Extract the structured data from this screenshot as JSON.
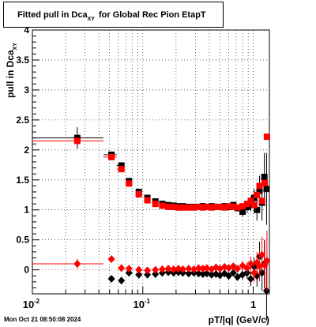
{
  "chart_data": {
    "type": "scatter",
    "title": {
      "main": "Fitted pull in Dca",
      "sub": "XY",
      "suffix": "for Global Rec Pion EtapT"
    },
    "xlabel": "pT/|q| (GeV/c)",
    "ylabel": {
      "main": "pull in Dca",
      "sub": "XY"
    },
    "xscale": "log",
    "xlim": [
      0.01,
      1.4
    ],
    "ylim": [
      -0.4,
      4.0
    ],
    "grid": true,
    "x_ticks": [
      {
        "value": 0.01,
        "label": "10",
        "exp": "-2"
      },
      {
        "value": 0.1,
        "label": "10",
        "exp": "-1"
      },
      {
        "value": 1,
        "label": "1",
        "exp": ""
      }
    ],
    "y_ticks": [
      "0",
      "0.5",
      "1",
      "1.5",
      "2",
      "2.5",
      "3",
      "3.5",
      "4"
    ],
    "series": [
      {
        "marker": "square",
        "color": "#000000",
        "points": [
          {
            "x": 0.0255,
            "y": 2.2,
            "err": 0.18,
            "xlo": 0.01,
            "xhi": 0.044
          },
          {
            "x": 0.052,
            "y": 1.92,
            "err": 0.05,
            "xlo": 0.044,
            "xhi": 0.058
          },
          {
            "x": 0.064,
            "y": 1.74,
            "err": 0.04,
            "xlo": 0.058,
            "xhi": 0.068
          },
          {
            "x": 0.075,
            "y": 1.48,
            "err": 0.03
          },
          {
            "x": 0.092,
            "y": 1.3,
            "err": 0.03
          },
          {
            "x": 0.11,
            "y": 1.2,
            "err": 0.03
          },
          {
            "x": 0.13,
            "y": 1.14,
            "err": 0.03
          },
          {
            "x": 0.15,
            "y": 1.1,
            "err": 0.03
          },
          {
            "x": 0.17,
            "y": 1.08,
            "err": 0.03
          },
          {
            "x": 0.19,
            "y": 1.07,
            "err": 0.03
          },
          {
            "x": 0.21,
            "y": 1.06,
            "err": 0.03
          },
          {
            "x": 0.23,
            "y": 1.06,
            "err": 0.03
          },
          {
            "x": 0.26,
            "y": 1.05,
            "err": 0.03
          },
          {
            "x": 0.29,
            "y": 1.05,
            "err": 0.03
          },
          {
            "x": 0.32,
            "y": 1.05,
            "err": 0.03
          },
          {
            "x": 0.35,
            "y": 1.06,
            "err": 0.03
          },
          {
            "x": 0.38,
            "y": 1.05,
            "err": 0.03
          },
          {
            "x": 0.42,
            "y": 1.06,
            "err": 0.03
          },
          {
            "x": 0.46,
            "y": 1.05,
            "err": 0.04
          },
          {
            "x": 0.5,
            "y": 1.05,
            "err": 0.04
          },
          {
            "x": 0.55,
            "y": 1.06,
            "err": 0.04
          },
          {
            "x": 0.6,
            "y": 1.05,
            "err": 0.05
          },
          {
            "x": 0.66,
            "y": 1.08,
            "err": 0.05
          },
          {
            "x": 0.72,
            "y": 1.03,
            "err": 0.06
          },
          {
            "x": 0.8,
            "y": 0.97,
            "err": 0.08
          },
          {
            "x": 0.88,
            "y": 1.05,
            "err": 0.1
          },
          {
            "x": 0.95,
            "y": 1.1,
            "err": 0.12
          },
          {
            "x": 1.02,
            "y": 1.2,
            "err": 0.15
          },
          {
            "x": 1.08,
            "y": 1.0,
            "err": 0.18
          },
          {
            "x": 1.14,
            "y": 1.32,
            "err": 0.25
          },
          {
            "x": 1.2,
            "y": 1.12,
            "err": 0.3
          },
          {
            "x": 1.26,
            "y": 1.55,
            "err": 0.4
          },
          {
            "x": 1.32,
            "y": 1.35,
            "err": 0.6
          }
        ]
      },
      {
        "marker": "square",
        "color": "#ff0000",
        "points": [
          {
            "x": 0.0255,
            "y": 2.15,
            "xlo": 0.01,
            "xhi": 0.044
          },
          {
            "x": 0.052,
            "y": 1.88,
            "xlo": 0.044,
            "xhi": 0.058
          },
          {
            "x": 0.064,
            "y": 1.68,
            "xlo": 0.058,
            "xhi": 0.068
          },
          {
            "x": 0.075,
            "y": 1.44
          },
          {
            "x": 0.092,
            "y": 1.26
          },
          {
            "x": 0.11,
            "y": 1.16
          },
          {
            "x": 0.13,
            "y": 1.1
          },
          {
            "x": 0.15,
            "y": 1.07
          },
          {
            "x": 0.17,
            "y": 1.05
          },
          {
            "x": 0.19,
            "y": 1.05
          },
          {
            "x": 0.21,
            "y": 1.04
          },
          {
            "x": 0.23,
            "y": 1.04
          },
          {
            "x": 0.26,
            "y": 1.04
          },
          {
            "x": 0.29,
            "y": 1.04
          },
          {
            "x": 0.32,
            "y": 1.05
          },
          {
            "x": 0.35,
            "y": 1.04
          },
          {
            "x": 0.38,
            "y": 1.05
          },
          {
            "x": 0.42,
            "y": 1.04
          },
          {
            "x": 0.46,
            "y": 1.05
          },
          {
            "x": 0.5,
            "y": 1.05
          },
          {
            "x": 0.55,
            "y": 1.04
          },
          {
            "x": 0.6,
            "y": 1.06
          },
          {
            "x": 0.66,
            "y": 1.05
          },
          {
            "x": 0.72,
            "y": 1.04
          },
          {
            "x": 0.8,
            "y": 1.06
          },
          {
            "x": 0.88,
            "y": 1.1
          },
          {
            "x": 0.95,
            "y": 1.15
          },
          {
            "x": 1.02,
            "y": 1.08
          },
          {
            "x": 1.08,
            "y": 1.25
          },
          {
            "x": 1.14,
            "y": 1.4
          },
          {
            "x": 1.2,
            "y": 1.15
          },
          {
            "x": 1.27,
            "y": 1.45
          },
          {
            "x": 1.33,
            "y": 2.22
          }
        ]
      },
      {
        "marker": "diamond",
        "color": "#000000",
        "points": [
          {
            "x": 0.064,
            "y": -0.18,
            "err": 0.05
          },
          {
            "x": 0.052,
            "y": -0.15,
            "err": 0.04
          },
          {
            "x": 0.075,
            "y": -0.05,
            "err": 0.03
          },
          {
            "x": 0.092,
            "y": -0.08,
            "err": 0.03
          },
          {
            "x": 0.11,
            "y": -0.08,
            "err": 0.03
          },
          {
            "x": 0.13,
            "y": -0.07,
            "err": 0.03
          },
          {
            "x": 0.15,
            "y": -0.05,
            "err": 0.03
          },
          {
            "x": 0.17,
            "y": -0.04,
            "err": 0.03
          },
          {
            "x": 0.19,
            "y": -0.05,
            "err": 0.03
          },
          {
            "x": 0.21,
            "y": -0.04,
            "err": 0.03
          },
          {
            "x": 0.23,
            "y": -0.05,
            "err": 0.03
          },
          {
            "x": 0.26,
            "y": -0.06,
            "err": 0.03
          },
          {
            "x": 0.29,
            "y": -0.05,
            "err": 0.03
          },
          {
            "x": 0.32,
            "y": -0.06,
            "err": 0.03
          },
          {
            "x": 0.35,
            "y": -0.07,
            "err": 0.03
          },
          {
            "x": 0.38,
            "y": -0.06,
            "err": 0.03
          },
          {
            "x": 0.42,
            "y": -0.08,
            "err": 0.03
          },
          {
            "x": 0.46,
            "y": -0.07,
            "err": 0.04
          },
          {
            "x": 0.5,
            "y": -0.09,
            "err": 0.04
          },
          {
            "x": 0.55,
            "y": -0.06,
            "err": 0.04
          },
          {
            "x": 0.6,
            "y": -0.1,
            "err": 0.05
          },
          {
            "x": 0.66,
            "y": -0.05,
            "err": 0.05
          },
          {
            "x": 0.72,
            "y": -0.12,
            "err": 0.06
          },
          {
            "x": 0.8,
            "y": -0.08,
            "err": 0.08
          },
          {
            "x": 0.88,
            "y": -0.05,
            "err": 0.1
          },
          {
            "x": 0.95,
            "y": -0.15,
            "err": 0.12
          },
          {
            "x": 1.02,
            "y": 0.05,
            "err": 0.15
          },
          {
            "x": 1.08,
            "y": -0.1,
            "err": 0.18
          },
          {
            "x": 1.14,
            "y": 0.22,
            "err": 0.25
          },
          {
            "x": 1.2,
            "y": -0.05,
            "err": 0.3
          },
          {
            "x": 1.26,
            "y": 0.1,
            "err": 0.4
          },
          {
            "x": 1.32,
            "y": -0.35,
            "err": 0.5
          }
        ]
      },
      {
        "marker": "diamond",
        "color": "#ff0000",
        "points": [
          {
            "x": 0.0255,
            "y": 0.1,
            "err": 0.08,
            "xlo": 0.01,
            "xhi": 0.044
          },
          {
            "x": 0.052,
            "y": 0.18,
            "err": 0.05
          },
          {
            "x": 0.064,
            "y": 0.03,
            "err": 0.04
          },
          {
            "x": 0.075,
            "y": 0.02,
            "err": 0.03
          },
          {
            "x": 0.092,
            "y": 0.0,
            "err": 0.03
          },
          {
            "x": 0.11,
            "y": -0.01,
            "err": 0.03
          },
          {
            "x": 0.13,
            "y": 0.0,
            "err": 0.03
          },
          {
            "x": 0.15,
            "y": 0.01,
            "err": 0.03
          },
          {
            "x": 0.17,
            "y": 0.02,
            "err": 0.03
          },
          {
            "x": 0.19,
            "y": 0.01,
            "err": 0.03
          },
          {
            "x": 0.21,
            "y": 0.02,
            "err": 0.03
          },
          {
            "x": 0.23,
            "y": 0.01,
            "err": 0.03
          },
          {
            "x": 0.26,
            "y": 0.02,
            "err": 0.03
          },
          {
            "x": 0.29,
            "y": 0.01,
            "err": 0.03
          },
          {
            "x": 0.32,
            "y": 0.03,
            "err": 0.03
          },
          {
            "x": 0.35,
            "y": 0.02,
            "err": 0.03
          },
          {
            "x": 0.38,
            "y": 0.03,
            "err": 0.03
          },
          {
            "x": 0.42,
            "y": 0.01,
            "err": 0.03
          },
          {
            "x": 0.46,
            "y": 0.04,
            "err": 0.04
          },
          {
            "x": 0.5,
            "y": 0.02,
            "err": 0.04
          },
          {
            "x": 0.55,
            "y": 0.05,
            "err": 0.04
          },
          {
            "x": 0.6,
            "y": 0.03,
            "err": 0.05
          },
          {
            "x": 0.66,
            "y": 0.06,
            "err": 0.05
          },
          {
            "x": 0.72,
            "y": 0.02,
            "err": 0.06
          },
          {
            "x": 0.8,
            "y": 0.07,
            "err": 0.08
          },
          {
            "x": 0.88,
            "y": 0.03,
            "err": 0.1
          },
          {
            "x": 0.95,
            "y": 0.1,
            "err": 0.12
          },
          {
            "x": 1.02,
            "y": -0.05,
            "err": 0.15
          },
          {
            "x": 1.08,
            "y": 0.12,
            "err": 0.18
          },
          {
            "x": 1.14,
            "y": 0.06,
            "err": 0.25
          },
          {
            "x": 1.2,
            "y": 0.25,
            "err": 0.3
          },
          {
            "x": 1.27,
            "y": 0.08,
            "err": 0.4
          },
          {
            "x": 1.33,
            "y": 0.15,
            "err": 0.5
          }
        ]
      }
    ]
  },
  "footer": {
    "timestamp": "Mon Oct 21 08:50:08 2024"
  }
}
